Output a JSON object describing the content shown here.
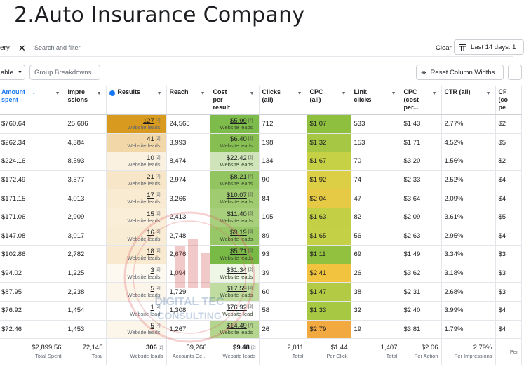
{
  "page_title": "2.Auto Insurance Company",
  "filter": {
    "chip_label": "ery",
    "search_placeholder": "Search and filter",
    "clear_label": "Clear",
    "date_label": "Last 14 days: 1"
  },
  "toolbar": {
    "table_label": "able",
    "group_label": "Group Breakdowns",
    "reset_label": "Reset Column Widths"
  },
  "columns": [
    {
      "label": "Amount\nspent",
      "sort": "↓"
    },
    {
      "label": "Impre\nssions"
    },
    {
      "label": "Results"
    },
    {
      "label": "Reach"
    },
    {
      "label": "Cost\nper\nresult"
    },
    {
      "label": "Clicks\n(all)"
    },
    {
      "label": "CPC\n(all)"
    },
    {
      "label": "Link\nclicks"
    },
    {
      "label": "CPC\n(cost\nper..."
    },
    {
      "label": "CTR (all)"
    },
    {
      "label": "CF\n(co\npe"
    }
  ],
  "rows": [
    {
      "amount": "$760.64",
      "impressions": "25,686",
      "results": "127",
      "results_sup": "[2]",
      "results_label": "Website leads",
      "reach": "24,565",
      "cpr": "$5.99",
      "cpr_sup": "[2]",
      "cpr_label": "Website leads",
      "clicks": "712",
      "cpc": "$1.07",
      "link": "533",
      "cpc2": "$1.43",
      "ctr": "2.77%",
      "last": "$2",
      "res_color": "#d99b1f",
      "cpr_color": "#7dbb4a",
      "cpc_color": "#8fbf3f"
    },
    {
      "amount": "$262.34",
      "impressions": "4,384",
      "results": "41",
      "results_sup": "[2]",
      "results_label": "Website leads",
      "reach": "3,993",
      "cpr": "$6.40",
      "cpr_sup": "[2]",
      "cpr_label": "Website leads",
      "clicks": "198",
      "cpc": "$1.32",
      "link": "153",
      "cpc2": "$1.71",
      "ctr": "4.52%",
      "last": "$5",
      "res_color": "#f2d7a8",
      "cpr_color": "#86be52",
      "cpc_color": "#a6c743"
    },
    {
      "amount": "$224.16",
      "impressions": "8,593",
      "results": "10",
      "results_sup": "[2]",
      "results_label": "Website leads",
      "reach": "8,474",
      "cpr": "$22.42",
      "cpr_sup": "[2]",
      "cpr_label": "Website leads",
      "clicks": "134",
      "cpc": "$1.67",
      "link": "70",
      "cpc2": "$3.20",
      "ctr": "1.56%",
      "last": "$2",
      "res_color": "#fbf1e1",
      "cpr_color": "#cfe5b9",
      "cpc_color": "#c6d146"
    },
    {
      "amount": "$172.49",
      "impressions": "3,577",
      "results": "21",
      "results_sup": "[2]",
      "results_label": "Website leads",
      "reach": "2,974",
      "cpr": "$8.21",
      "cpr_sup": "[2]",
      "cpr_label": "Website leads",
      "clicks": "90",
      "cpc": "$1.92",
      "link": "74",
      "cpc2": "$2.33",
      "ctr": "2.52%",
      "last": "$4",
      "res_color": "#f7e6c8",
      "cpr_color": "#92c45f",
      "cpc_color": "#dccf46"
    },
    {
      "amount": "$171.15",
      "impressions": "4,013",
      "results": "17",
      "results_sup": "[2]",
      "results_label": "Website leads",
      "reach": "3,266",
      "cpr": "$10.07",
      "cpr_sup": "[2]",
      "cpr_label": "Website leads",
      "clicks": "84",
      "cpc": "$2.04",
      "link": "47",
      "cpc2": "$3.64",
      "ctr": "2.09%",
      "last": "$4",
      "res_color": "#f9ead2",
      "cpr_color": "#a0cb71",
      "cpc_color": "#e6c944"
    },
    {
      "amount": "$171.06",
      "impressions": "2,909",
      "results": "15",
      "results_sup": "[2]",
      "results_label": "Website leads",
      "reach": "2,413",
      "cpr": "$11.40",
      "cpr_sup": "[2]",
      "cpr_label": "Website leads",
      "clicks": "105",
      "cpc": "$1.63",
      "link": "82",
      "cpc2": "$2.09",
      "ctr": "3.61%",
      "last": "$5",
      "res_color": "#faeed9",
      "cpr_color": "#a8cf7b",
      "cpc_color": "#c3d046"
    },
    {
      "amount": "$147.08",
      "impressions": "3,017",
      "results": "16",
      "results_sup": "[2]",
      "results_label": "Website leads",
      "reach": "2,748",
      "cpr": "$9.19",
      "cpr_sup": "[2]",
      "cpr_label": "Website leads",
      "clicks": "89",
      "cpc": "$1.65",
      "link": "56",
      "cpc2": "$2.63",
      "ctr": "2.95%",
      "last": "$4",
      "res_color": "#f9ecd5",
      "cpr_color": "#98c768",
      "cpc_color": "#c4d046"
    },
    {
      "amount": "$102.86",
      "impressions": "2,782",
      "results": "18",
      "results_sup": "[2]",
      "results_label": "Website leads",
      "reach": "2,676",
      "cpr": "$5.71",
      "cpr_sup": "[2]",
      "cpr_label": "Website leads",
      "clicks": "93",
      "cpc": "$1.11",
      "link": "69",
      "cpc2": "$1.49",
      "ctr": "3.34%",
      "last": "$3",
      "res_color": "#f8e9cf",
      "cpr_color": "#79b946",
      "cpc_color": "#92c03f"
    },
    {
      "amount": "$94.02",
      "impressions": "1,225",
      "results": "3",
      "results_sup": "[2]",
      "results_label": "Website leads",
      "reach": "1,094",
      "cpr": "$31.34",
      "cpr_sup": "[2]",
      "cpr_label": "Website leads",
      "clicks": "39",
      "cpc": "$2.41",
      "link": "26",
      "cpc2": "$3.62",
      "ctr": "3.18%",
      "last": "$3",
      "res_color": "#fdf8f0",
      "cpr_color": "#eef6e6",
      "cpc_color": "#f1c33f"
    },
    {
      "amount": "$87.95",
      "impressions": "2,238",
      "results": "5",
      "results_sup": "[2]",
      "results_label": "Website leads",
      "reach": "1,729",
      "cpr": "$17.59",
      "cpr_sup": "[2]",
      "cpr_label": "Website leads",
      "clicks": "60",
      "cpc": "$1.47",
      "link": "38",
      "cpc2": "$2.31",
      "ctr": "2.68%",
      "last": "$3",
      "res_color": "#fcf5ea",
      "cpr_color": "#c0dca1",
      "cpc_color": "#b3cb44"
    },
    {
      "amount": "$76.92",
      "impressions": "1,454",
      "results": "1",
      "results_sup": "[2]",
      "results_label": "Website lead",
      "reach": "1,308",
      "cpr": "$76.92",
      "cpr_sup": "[2]",
      "cpr_label": "Website lead",
      "clicks": "58",
      "cpc": "$1.33",
      "link": "32",
      "cpc2": "$2.40",
      "ctr": "3.99%",
      "last": "$4",
      "res_color": "#ffffff",
      "cpr_color": "#ffffff",
      "cpc_color": "#a7c843"
    },
    {
      "amount": "$72.46",
      "impressions": "1,453",
      "results": "5",
      "results_sup": "[2]",
      "results_label": "Website leads",
      "reach": "1,267",
      "cpr": "$14.49",
      "cpr_sup": "[2]",
      "cpr_label": "Website leads",
      "clicks": "26",
      "cpc": "$2.79",
      "link": "19",
      "cpc2": "$3.81",
      "ctr": "1.79%",
      "last": "$4",
      "res_color": "#fcf5ea",
      "cpr_color": "#b3d58e",
      "cpc_color": "#f2a93f"
    }
  ],
  "totals": [
    {
      "v": "$2,899.56",
      "s": "Total Spent"
    },
    {
      "v": "72,145",
      "s": "Total"
    },
    {
      "v": "306",
      "sup": "[2]",
      "s": "Website leads"
    },
    {
      "v": "59,266",
      "s": "Accounts Ce..."
    },
    {
      "v": "$9.48",
      "sup": "[2]",
      "s": "Website leads"
    },
    {
      "v": "2,011",
      "s": "Total"
    },
    {
      "v": "$1.44",
      "s": "Per Click"
    },
    {
      "v": "1,407",
      "s": "Total"
    },
    {
      "v": "$2.06",
      "s": "Per Action"
    },
    {
      "v": "2.79%",
      "s": "Per Impressions"
    },
    {
      "v": "",
      "s": "Per"
    }
  ],
  "watermark_text": {
    "line1": "DIGITAL TEC",
    "line2": "CONSULTING"
  },
  "colors": {
    "accent": "#1877f2",
    "border": "#e4e6eb"
  }
}
